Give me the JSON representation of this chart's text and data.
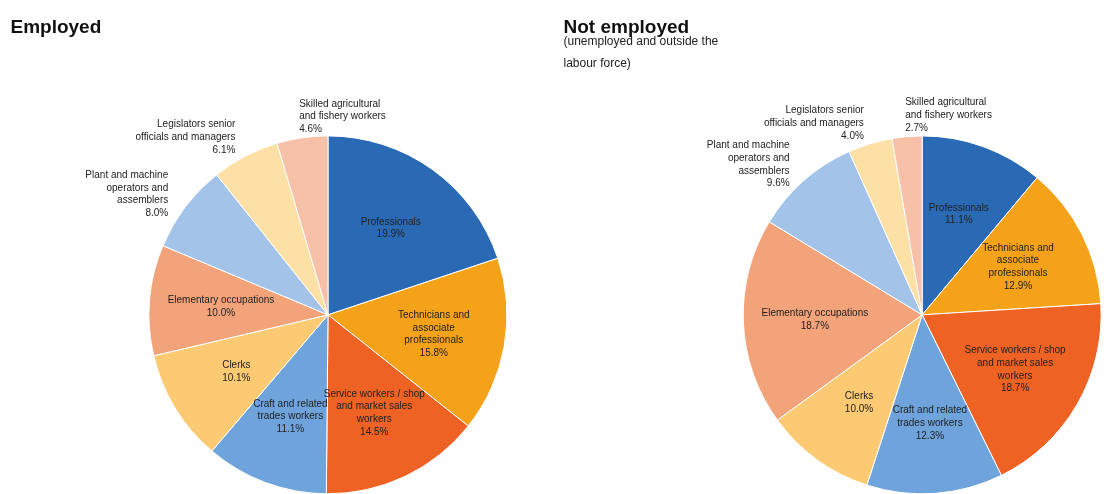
{
  "chart_data": [
    {
      "type": "pie",
      "title": "Employed",
      "categories": [
        "Professionals",
        "Technicians and associate professionals",
        "Service workers / shop and market sales workers",
        "Craft and related trades workers",
        "Clerks",
        "Elementary occupations",
        "Plant and machine operators and assemblers",
        "Legislators senior officials and managers",
        "Skilled agricultural and fishery workers"
      ],
      "values": [
        19.9,
        15.8,
        14.5,
        11.1,
        10.1,
        10.0,
        8.0,
        6.1,
        4.6
      ],
      "value_labels": [
        "19.9%",
        "15.8%",
        "14.5%",
        "11.1%",
        "10.1%",
        "10.0%",
        "8.0%",
        "6.1%",
        "4.6%"
      ],
      "colors": [
        "#2a6ab4",
        "#f5a21b",
        "#ee6224",
        "#6fa3dc",
        "#fbca72",
        "#f2a37a",
        "#a3c4e8",
        "#fde0a5",
        "#f7c0a8"
      ]
    },
    {
      "type": "pie",
      "title": "Not employed",
      "subtitle": "(unemployed and outside the labour force)",
      "categories": [
        "Professionals",
        "Technicians and associate professionals",
        "Service workers / shop and market sales workers",
        "Craft and related trades workers",
        "Clerks",
        "Elementary occupations",
        "Plant and machine operators and assemblers",
        "Legislators senior officials and managers",
        "Skilled agricultural and fishery workers"
      ],
      "values": [
        11.1,
        12.9,
        18.7,
        12.3,
        10.0,
        18.7,
        9.6,
        4.0,
        2.7
      ],
      "value_labels": [
        "11.1%",
        "12.9%",
        "18.7%",
        "12.3%",
        "10.0%",
        "18.7%",
        "9.6%",
        "4.0%",
        "2.7%"
      ],
      "colors": [
        "#2a6ab4",
        "#f5a21b",
        "#ee6224",
        "#6fa3dc",
        "#fbca72",
        "#f2a37a",
        "#a3c4e8",
        "#fde0a5",
        "#f7c0a8"
      ]
    }
  ]
}
